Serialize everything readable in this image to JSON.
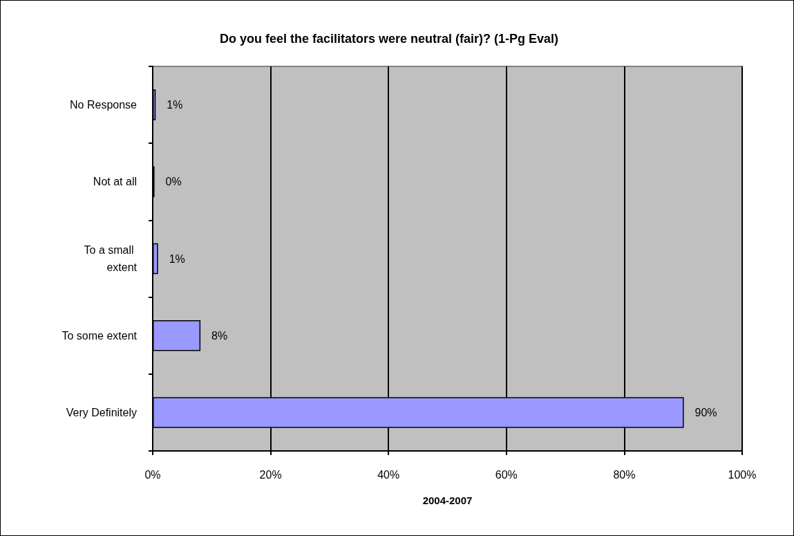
{
  "chart_data": {
    "type": "bar",
    "orientation": "horizontal",
    "title": "Do you feel the facilitators were neutral (fair)? (1-Pg Eval)",
    "xlabel": "2004-2007",
    "categories": [
      "No Response",
      "Not at all",
      "To a small extent",
      "To some extent",
      "Very Definitely"
    ],
    "values": [
      0.5,
      0.3,
      0.9,
      8.1,
      90.1
    ],
    "value_labels": [
      "1%",
      "0%",
      "1%",
      "8%",
      "90%"
    ],
    "color": "#9999ff",
    "xlim": [
      0,
      100
    ],
    "xticks": [
      {
        "value": 0,
        "label": "0%"
      },
      {
        "value": 20,
        "label": "20%"
      },
      {
        "value": 40,
        "label": "40%"
      },
      {
        "value": 60,
        "label": "60%"
      },
      {
        "value": 80,
        "label": "80%"
      },
      {
        "value": 100,
        "label": "100%"
      }
    ],
    "grid": "x"
  }
}
